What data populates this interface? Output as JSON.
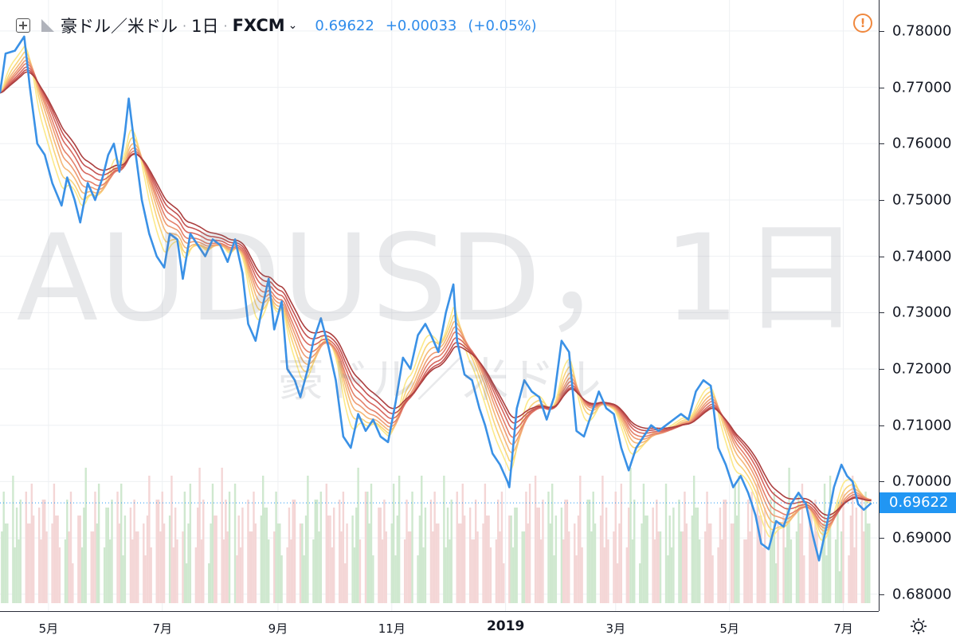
{
  "header": {
    "symbol_name": "豪ドル／米ドル",
    "interval": "1日",
    "exchange": "FXCM",
    "last": "0.69622",
    "change": "+0.00033",
    "change_pct": "(+0.05%)"
  },
  "watermark": {
    "main": "AUDUSD，1日",
    "sub": "豪ドル／米ドル"
  },
  "colors": {
    "price_line": "#3a91e6",
    "ribbon": [
      "#fce98a",
      "#f9d47a",
      "#f5b878",
      "#ee9c73",
      "#e4806a",
      "#d7685f",
      "#c45352",
      "#ab3f3f"
    ],
    "volume_up": "#cfe8cf",
    "volume_down": "#f4d6d6",
    "last_price_tag": "#2196f3"
  },
  "icons": {
    "add": "plus-square-icon",
    "flag": "flag-icon",
    "alert": "alert-circle-icon",
    "settings": "gear-icon"
  },
  "chart_data": {
    "type": "line",
    "title": "AUDUSD，1日",
    "ylabel": "",
    "xlabel": "",
    "ylim": [
      0.677,
      0.7855
    ],
    "price_ticks": [
      "0.78000",
      "0.77000",
      "0.76000",
      "0.75000",
      "0.74000",
      "0.73000",
      "0.72000",
      "0.71000",
      "0.70000",
      "0.69000",
      "0.68000"
    ],
    "price_tick_values": [
      0.78,
      0.77,
      0.76,
      0.75,
      0.74,
      0.73,
      0.72,
      0.71,
      0.7,
      0.69,
      0.68
    ],
    "last_price_label": "0.69622",
    "last_price": 0.69622,
    "time_ticks": [
      {
        "label": "5月",
        "x": "2018-05-01",
        "bold": false
      },
      {
        "label": "7月",
        "x": "2018-07-01",
        "bold": false
      },
      {
        "label": "9月",
        "x": "2018-09-01",
        "bold": false
      },
      {
        "label": "11月",
        "x": "2018-11-01",
        "bold": false
      },
      {
        "label": "2019",
        "x": "2019-01-01",
        "bold": true
      },
      {
        "label": "3月",
        "x": "2019-03-01",
        "bold": false
      },
      {
        "label": "5月",
        "x": "2019-05-01",
        "bold": false
      },
      {
        "label": "7月",
        "x": "2019-07-01",
        "bold": false
      }
    ],
    "xlim": [
      "2018-04-05",
      "2019-07-20"
    ],
    "series": [
      {
        "values": [
          [
            "2018-04-05",
            0.769
          ],
          [
            "2018-04-08",
            0.776
          ],
          [
            "2018-04-13",
            0.7765
          ],
          [
            "2018-04-18",
            0.779
          ],
          [
            "2018-04-21",
            0.77
          ],
          [
            "2018-04-25",
            0.76
          ],
          [
            "2018-04-29",
            0.758
          ],
          [
            "2018-05-03",
            0.753
          ],
          [
            "2018-05-08",
            0.749
          ],
          [
            "2018-05-11",
            0.754
          ],
          [
            "2018-05-15",
            0.75
          ],
          [
            "2018-05-18",
            0.746
          ],
          [
            "2018-05-22",
            0.753
          ],
          [
            "2018-05-26",
            0.75
          ],
          [
            "2018-05-30",
            0.754
          ],
          [
            "2018-06-02",
            0.758
          ],
          [
            "2018-06-05",
            0.76
          ],
          [
            "2018-06-08",
            0.755
          ],
          [
            "2018-06-11",
            0.762
          ],
          [
            "2018-06-13",
            0.768
          ],
          [
            "2018-06-16",
            0.76
          ],
          [
            "2018-06-20",
            0.75
          ],
          [
            "2018-06-24",
            0.744
          ],
          [
            "2018-06-28",
            0.74
          ],
          [
            "2018-07-02",
            0.738
          ],
          [
            "2018-07-05",
            0.744
          ],
          [
            "2018-07-09",
            0.743
          ],
          [
            "2018-07-12",
            0.736
          ],
          [
            "2018-07-16",
            0.744
          ],
          [
            "2018-07-20",
            0.742
          ],
          [
            "2018-07-24",
            0.74
          ],
          [
            "2018-07-28",
            0.743
          ],
          [
            "2018-08-01",
            0.742
          ],
          [
            "2018-08-05",
            0.739
          ],
          [
            "2018-08-09",
            0.743
          ],
          [
            "2018-08-13",
            0.737
          ],
          [
            "2018-08-16",
            0.728
          ],
          [
            "2018-08-20",
            0.725
          ],
          [
            "2018-08-23",
            0.73
          ],
          [
            "2018-08-27",
            0.736
          ],
          [
            "2018-08-30",
            0.727
          ],
          [
            "2018-09-03",
            0.732
          ],
          [
            "2018-09-06",
            0.72
          ],
          [
            "2018-09-10",
            0.718
          ],
          [
            "2018-09-13",
            0.715
          ],
          [
            "2018-09-17",
            0.72
          ],
          [
            "2018-09-20",
            0.725
          ],
          [
            "2018-09-24",
            0.729
          ],
          [
            "2018-09-28",
            0.724
          ],
          [
            "2018-10-02",
            0.718
          ],
          [
            "2018-10-06",
            0.708
          ],
          [
            "2018-10-10",
            0.706
          ],
          [
            "2018-10-14",
            0.712
          ],
          [
            "2018-10-18",
            0.709
          ],
          [
            "2018-10-22",
            0.711
          ],
          [
            "2018-10-26",
            0.708
          ],
          [
            "2018-10-30",
            0.707
          ],
          [
            "2018-11-03",
            0.714
          ],
          [
            "2018-11-07",
            0.722
          ],
          [
            "2018-11-11",
            0.72
          ],
          [
            "2018-11-15",
            0.726
          ],
          [
            "2018-11-19",
            0.728
          ],
          [
            "2018-11-22",
            0.726
          ],
          [
            "2018-11-26",
            0.723
          ],
          [
            "2018-11-30",
            0.73
          ],
          [
            "2018-12-04",
            0.735
          ],
          [
            "2018-12-06",
            0.725
          ],
          [
            "2018-12-10",
            0.719
          ],
          [
            "2018-12-14",
            0.718
          ],
          [
            "2018-12-18",
            0.713
          ],
          [
            "2018-12-21",
            0.71
          ],
          [
            "2018-12-25",
            0.705
          ],
          [
            "2018-12-29",
            0.703
          ],
          [
            "2019-01-02",
            0.7
          ],
          [
            "2019-01-03",
            0.699
          ],
          [
            "2019-01-07",
            0.713
          ],
          [
            "2019-01-11",
            0.718
          ],
          [
            "2019-01-15",
            0.716
          ],
          [
            "2019-01-19",
            0.715
          ],
          [
            "2019-01-23",
            0.711
          ],
          [
            "2019-01-27",
            0.715
          ],
          [
            "2019-01-31",
            0.725
          ],
          [
            "2019-02-04",
            0.723
          ],
          [
            "2019-02-08",
            0.709
          ],
          [
            "2019-02-12",
            0.708
          ],
          [
            "2019-02-16",
            0.712
          ],
          [
            "2019-02-20",
            0.716
          ],
          [
            "2019-02-24",
            0.713
          ],
          [
            "2019-02-28",
            0.712
          ],
          [
            "2019-03-04",
            0.706
          ],
          [
            "2019-03-08",
            0.702
          ],
          [
            "2019-03-12",
            0.706
          ],
          [
            "2019-03-16",
            0.708
          ],
          [
            "2019-03-20",
            0.71
          ],
          [
            "2019-03-24",
            0.709
          ],
          [
            "2019-03-28",
            0.71
          ],
          [
            "2019-04-01",
            0.711
          ],
          [
            "2019-04-05",
            0.712
          ],
          [
            "2019-04-09",
            0.711
          ],
          [
            "2019-04-13",
            0.716
          ],
          [
            "2019-04-17",
            0.718
          ],
          [
            "2019-04-21",
            0.717
          ],
          [
            "2019-04-25",
            0.706
          ],
          [
            "2019-04-29",
            0.703
          ],
          [
            "2019-05-03",
            0.699
          ],
          [
            "2019-05-07",
            0.701
          ],
          [
            "2019-05-11",
            0.698
          ],
          [
            "2019-05-15",
            0.694
          ],
          [
            "2019-05-18",
            0.689
          ],
          [
            "2019-05-22",
            0.688
          ],
          [
            "2019-05-26",
            0.693
          ],
          [
            "2019-05-30",
            0.692
          ],
          [
            "2019-06-03",
            0.696
          ],
          [
            "2019-06-07",
            0.698
          ],
          [
            "2019-06-11",
            0.696
          ],
          [
            "2019-06-15",
            0.69
          ],
          [
            "2019-06-18",
            0.686
          ],
          [
            "2019-06-22",
            0.692
          ],
          [
            "2019-06-26",
            0.699
          ],
          [
            "2019-06-30",
            0.703
          ],
          [
            "2019-07-03",
            0.701
          ],
          [
            "2019-07-06",
            0.7
          ],
          [
            "2019-07-09",
            0.696
          ],
          [
            "2019-07-12",
            0.695
          ],
          [
            "2019-07-16",
            0.6962
          ]
        ]
      }
    ]
  }
}
